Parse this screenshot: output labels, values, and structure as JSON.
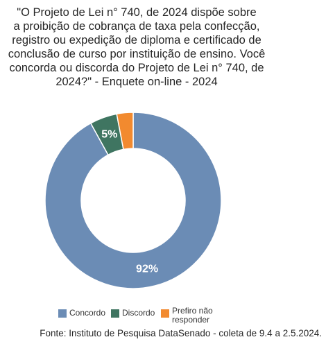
{
  "chart_data": {
    "type": "pie",
    "title_lines": [
      "\"O Projeto de Lei n° 740, de 2024 dispõe sobre",
      "a proibição de cobrança de taxa pela confecção,",
      "registro ou expedição de diploma e certificado de",
      "conclusão de curso por instituição de ensino. Você",
      "concorda ou discorda do Projeto de Lei n° 740, de",
      "2024?\" - Enquete on-line - 2024"
    ],
    "categories": [
      "Concordo",
      "Discordo",
      "Prefiro não responder"
    ],
    "values": [
      92,
      5,
      3
    ],
    "data_labels": [
      "92%",
      "5%",
      ""
    ],
    "colors": [
      "#6b8cb5",
      "#3f7561",
      "#f28a2f"
    ],
    "legend_position": "bottom",
    "donut": true
  },
  "source": "Fonte: Instituto de Pesquisa DataSenado - coleta de 9.4 a 2.5.2024."
}
